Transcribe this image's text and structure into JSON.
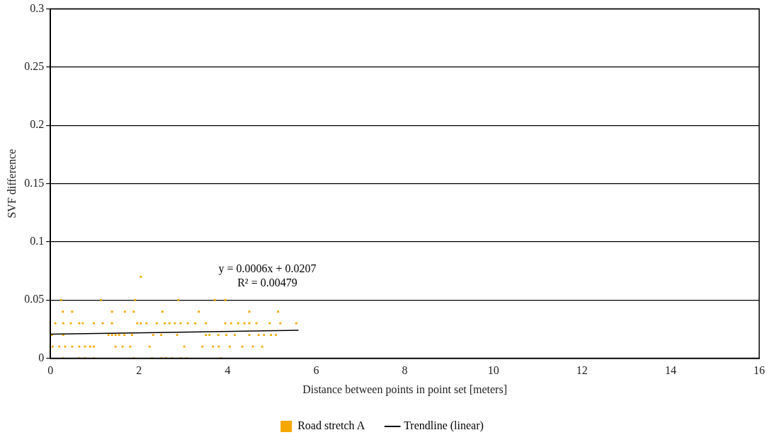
{
  "chart_data": {
    "type": "scatter",
    "xlabel": "Distance between points in point set [meters]",
    "ylabel": "SVF difference",
    "xlim": [
      0,
      16
    ],
    "xticks": [
      0,
      2,
      4,
      6,
      8,
      10,
      12,
      14,
      16
    ],
    "ylim": [
      0,
      0.3
    ],
    "yticks": [
      0,
      0.05,
      0.1,
      0.15,
      0.2,
      0.25,
      0.3
    ],
    "grid": "y",
    "legend": "bottom",
    "marker": "square",
    "annotations": [
      "y = 0.0006x + 0.0207",
      "R² = 0.00479"
    ],
    "series": [
      {
        "name": "Road stretch A",
        "color": "#f5a800",
        "x": [
          0.24,
          1.14,
          1.91,
          2.89,
          3.71,
          3.95,
          2.04,
          0.28,
          0.49,
          1.39,
          1.68,
          1.88,
          2.53,
          3.35,
          4.49,
          5.14,
          0.11,
          0.29,
          0.46,
          0.65,
          0.73,
          0.98,
          1.18,
          1.39,
          1.96,
          2.04,
          2.17,
          2.4,
          2.58,
          2.69,
          2.81,
          2.94,
          3.1,
          3.27,
          3.51,
          3.95,
          4.08,
          4.24,
          4.38,
          4.49,
          4.65,
          4.95,
          5.19,
          5.55,
          0.03,
          0.29,
          1.31,
          1.39,
          1.47,
          1.55,
          1.67,
          1.84,
          2.32,
          2.5,
          2.86,
          3.51,
          3.59,
          3.79,
          3.97,
          4.16,
          4.49,
          4.7,
          4.82,
          4.98,
          5.09,
          0.05,
          0.2,
          0.33,
          0.49,
          0.65,
          0.78,
          0.9,
          0.98,
          1.47,
          1.63,
          1.8,
          2.24,
          3.02,
          3.43,
          3.67,
          3.8,
          4.05,
          4.33,
          4.57,
          4.78,
          0.29,
          0.65,
          0.78,
          0.98,
          1.88,
          2.29,
          2.5,
          2.61,
          2.74,
          2.94,
          3.07,
          3.84
        ],
        "values": [
          0.05,
          0.05,
          0.05,
          0.05,
          0.05,
          0.05,
          0.07,
          0.04,
          0.04,
          0.04,
          0.04,
          0.04,
          0.04,
          0.04,
          0.04,
          0.04,
          0.03,
          0.03,
          0.03,
          0.03,
          0.03,
          0.03,
          0.03,
          0.03,
          0.03,
          0.03,
          0.03,
          0.03,
          0.03,
          0.03,
          0.03,
          0.03,
          0.03,
          0.03,
          0.03,
          0.03,
          0.03,
          0.03,
          0.03,
          0.03,
          0.03,
          0.03,
          0.03,
          0.03,
          0.02,
          0.02,
          0.02,
          0.02,
          0.02,
          0.02,
          0.02,
          0.02,
          0.02,
          0.02,
          0.02,
          0.02,
          0.02,
          0.02,
          0.02,
          0.02,
          0.02,
          0.02,
          0.02,
          0.02,
          0.02,
          0.01,
          0.01,
          0.01,
          0.01,
          0.01,
          0.01,
          0.01,
          0.01,
          0.01,
          0.01,
          0.01,
          0.01,
          0.01,
          0.01,
          0.01,
          0.01,
          0.01,
          0.01,
          0.01,
          0.01,
          0,
          0,
          0,
          0,
          0,
          0,
          0,
          0,
          0,
          0,
          0,
          0
        ]
      },
      {
        "name": "Trendline (linear)",
        "type": "line",
        "color": "#000000",
        "marker": "none",
        "x": [
          0,
          5.6
        ],
        "values": [
          0.0207,
          0.024
        ]
      }
    ]
  }
}
